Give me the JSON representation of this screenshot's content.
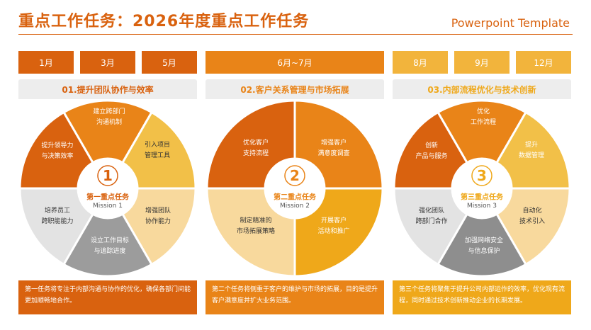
{
  "header": {
    "title": "重点工作任务：2026年度重点工作任务",
    "brand": "Powerpoint Template"
  },
  "colors": {
    "dark_orange": "#D9620F",
    "orange": "#E98418",
    "amber": "#EFA81A",
    "yellow": "#F2C048",
    "light": "#F8D99D",
    "grey": "#E3E3E3",
    "dark_grey": "#9C9C9C"
  },
  "columns": [
    {
      "months": [
        "1月",
        "3月",
        "5月"
      ],
      "section_title": "01.提升团队协作与效率",
      "hub": {
        "number": "1",
        "cn": "第一重点任务",
        "en": "Mission 1"
      },
      "segments": [
        "建立跨部门\n沟通机制",
        "引入项目\n管理工具",
        "增强团队\n协作能力",
        "设立工作目标\n与追踪进度",
        "培养员工\n跨职能能力",
        "提升领导力\n与决策效率"
      ],
      "description": "第一任务将专注于内部沟通与协作的优化，确保各部门间能更加顺畅地合作。"
    },
    {
      "months": [
        "6月~7月"
      ],
      "section_title": "02.客户关系管理与市场拓展",
      "hub": {
        "number": "2",
        "cn": "第二重点任务",
        "en": "Mission 2"
      },
      "segments": [
        "增强客户\n满意度调查",
        "开展客户\n活动和推广",
        "制定精准的\n市场拓展策略",
        "优化客户\n支持流程"
      ],
      "description": "第二个任务将侧重于客户的维护与市场的拓展，目的是提升客户满意度并扩大业务范围。"
    },
    {
      "months": [
        "8月",
        "9月",
        "12月"
      ],
      "section_title": "03.内部流程优化与技术创新",
      "hub": {
        "number": "3",
        "cn": "第三重点任务",
        "en": "Mission 3"
      },
      "segments": [
        "优化\n工作流程",
        "提升\n数据管理",
        "自动化\n技术引入",
        "加强网络安全\n与信息保护",
        "强化团队\n跨部门合作",
        "创新\n产品与服务"
      ],
      "description": "第三个任务将聚焦于提升公司内部运作的效率，优化现有流程，同时通过技术创新推动企业的长期发展。"
    }
  ]
}
